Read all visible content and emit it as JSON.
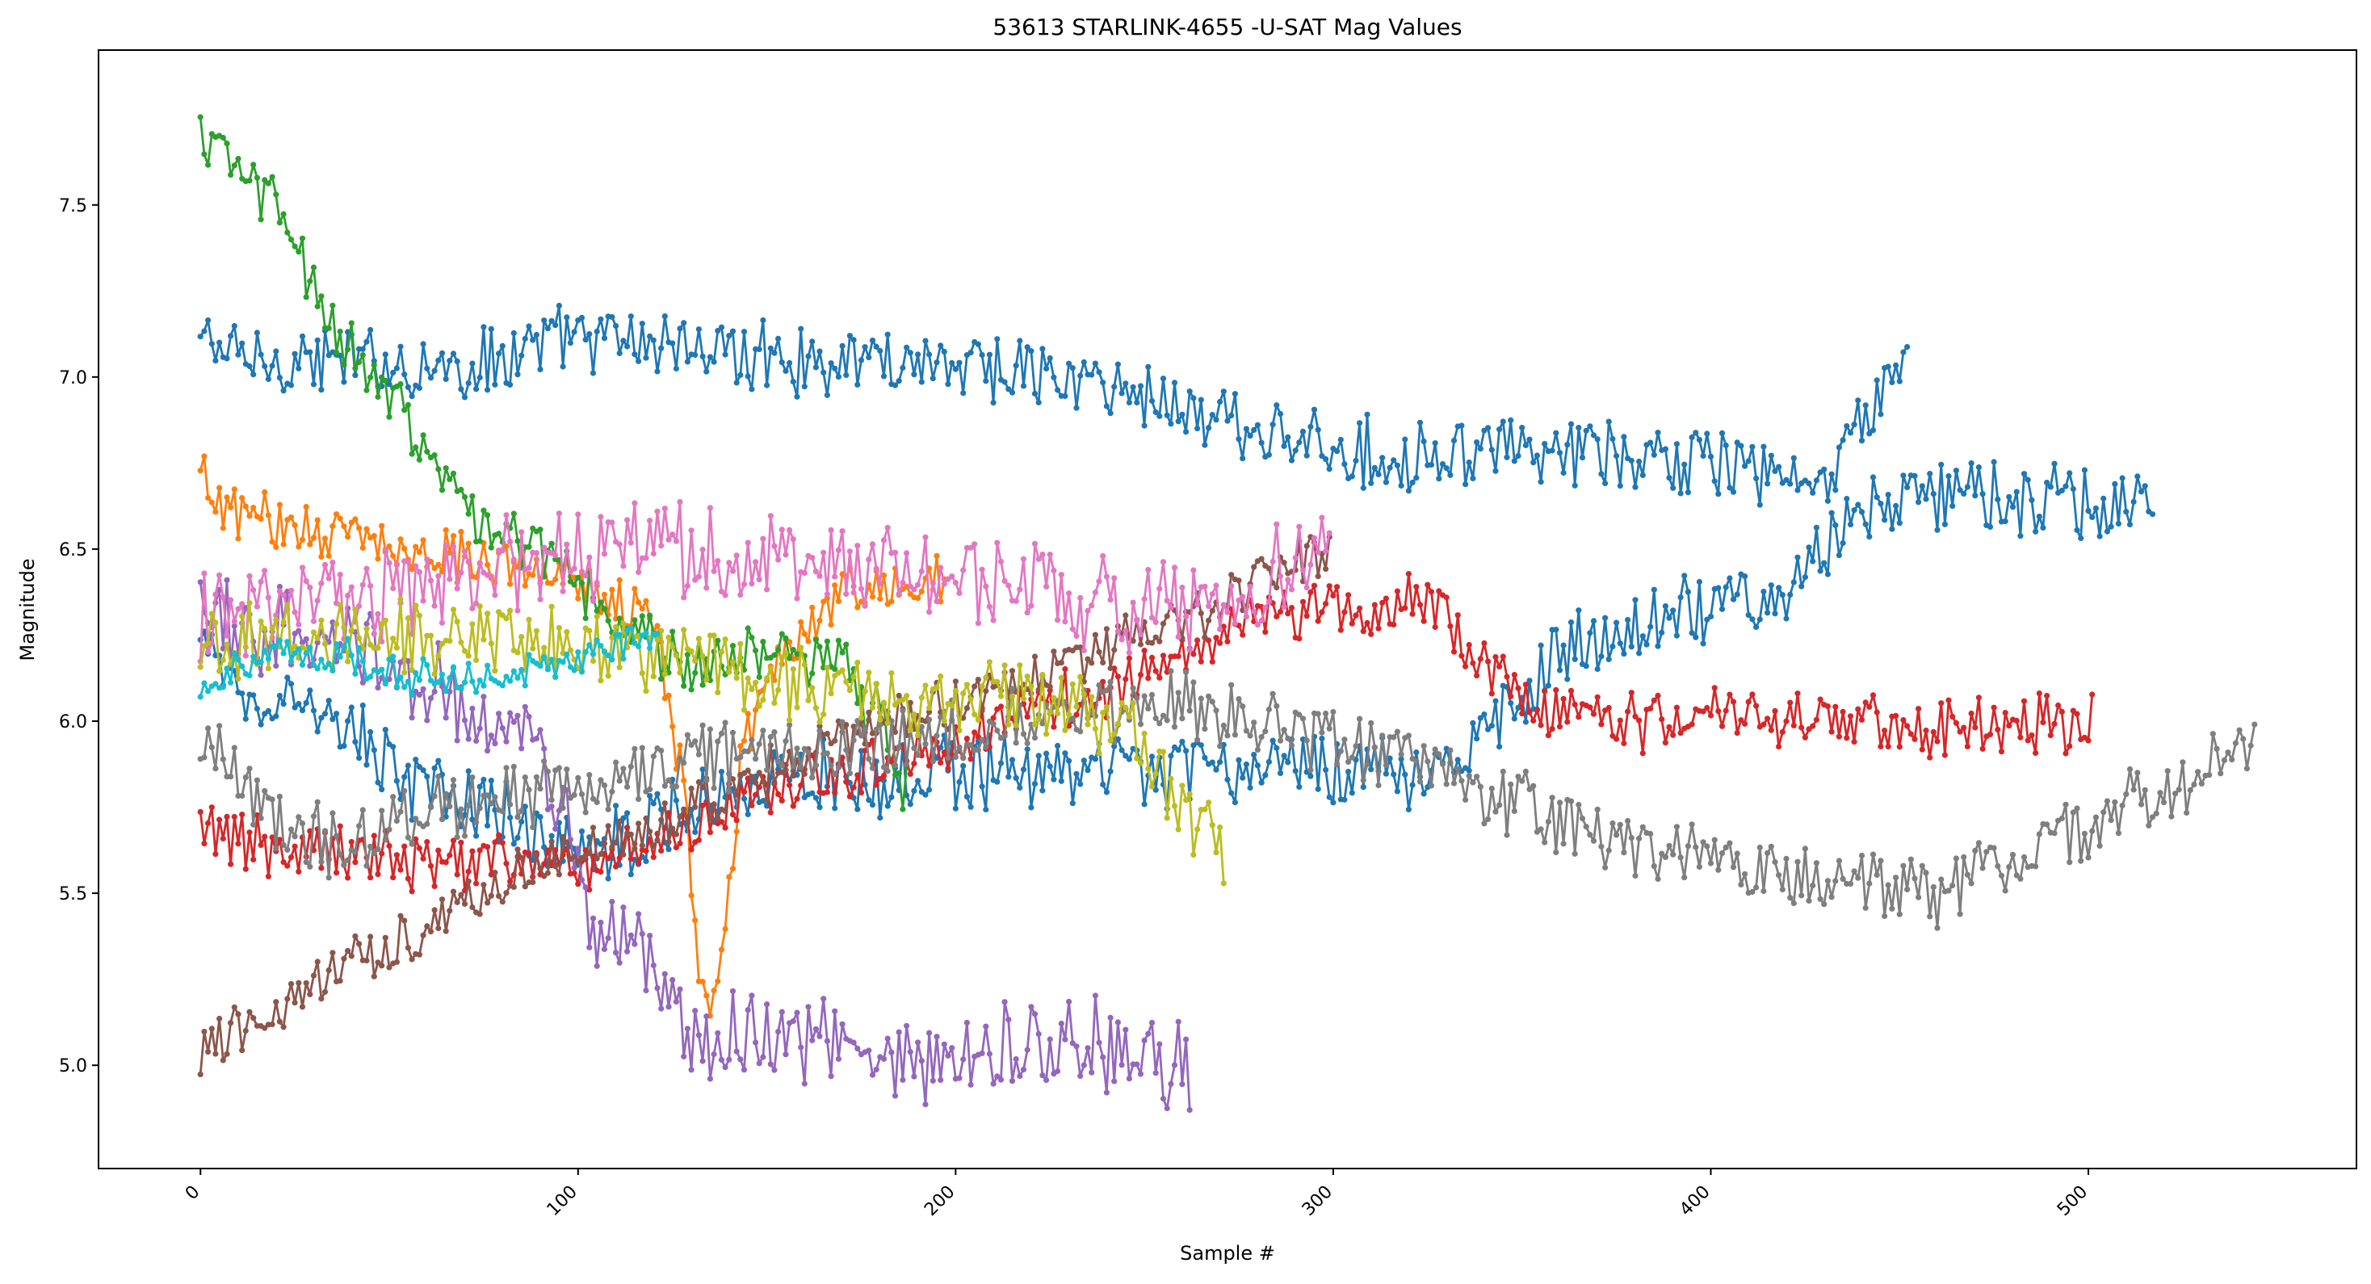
{
  "chart_data": {
    "type": "line",
    "title": "53613 STARLINK-4655 -U-SAT Mag Values",
    "xlabel": "Sample #",
    "ylabel": "Magnitude",
    "xlim": [
      -27,
      571
    ],
    "ylim": [
      4.7,
      7.95
    ],
    "xticks": [
      0,
      100,
      200,
      300,
      400,
      500
    ],
    "xtick_labels": [
      "0",
      "100",
      "200",
      "300",
      "400",
      "500"
    ],
    "yticks": [
      5.0,
      5.5,
      6.0,
      6.5,
      7.0,
      7.5
    ],
    "ytick_labels": [
      "5.0",
      "5.5",
      "6.0",
      "6.5",
      "7.0",
      "7.5"
    ],
    "xtick_rotation": 45,
    "grid": false,
    "legend": false,
    "marker": "circle",
    "series": [
      {
        "color": "#1f77b4",
        "n": 453,
        "noise": 0.09,
        "knots": [
          [
            0,
            7.12
          ],
          [
            10,
            7.05
          ],
          [
            40,
            7.05
          ],
          [
            70,
            7.03
          ],
          [
            100,
            7.12
          ],
          [
            120,
            7.1
          ],
          [
            160,
            7.05
          ],
          [
            200,
            7.05
          ],
          [
            250,
            6.95
          ],
          [
            300,
            6.78
          ],
          [
            350,
            6.78
          ],
          [
            400,
            6.75
          ],
          [
            430,
            6.68
          ],
          [
            445,
            6.95
          ],
          [
            453,
            7.1
          ]
        ]
      },
      {
        "color": "#1f77b4",
        "n": 518,
        "noise": 0.1,
        "knots": [
          [
            0,
            6.2
          ],
          [
            20,
            6.05
          ],
          [
            40,
            5.95
          ],
          [
            60,
            5.8
          ],
          [
            80,
            5.72
          ],
          [
            100,
            5.62
          ],
          [
            120,
            5.7
          ],
          [
            140,
            5.82
          ],
          [
            200,
            5.85
          ],
          [
            300,
            5.85
          ],
          [
            330,
            5.88
          ],
          [
            340,
            5.95
          ],
          [
            360,
            6.2
          ],
          [
            420,
            6.4
          ],
          [
            445,
            6.65
          ],
          [
            470,
            6.65
          ],
          [
            500,
            6.62
          ],
          [
            518,
            6.6
          ]
        ]
      },
      {
        "color": "#ff7f0e",
        "n": 198,
        "noise": 0.07,
        "knots": [
          [
            0,
            6.7
          ],
          [
            10,
            6.6
          ],
          [
            30,
            6.55
          ],
          [
            60,
            6.5
          ],
          [
            100,
            6.42
          ],
          [
            120,
            6.3
          ],
          [
            128,
            5.8
          ],
          [
            132,
            5.25
          ],
          [
            136,
            5.15
          ],
          [
            140,
            5.5
          ],
          [
            143,
            5.85
          ],
          [
            150,
            6.15
          ],
          [
            170,
            6.38
          ],
          [
            185,
            6.38
          ],
          [
            198,
            6.42
          ]
        ]
      },
      {
        "color": "#2ca02c",
        "n": 188,
        "noise": 0.08,
        "knots": [
          [
            0,
            7.72
          ],
          [
            10,
            7.6
          ],
          [
            20,
            7.5
          ],
          [
            30,
            7.25
          ],
          [
            40,
            7.1
          ],
          [
            50,
            6.95
          ],
          [
            60,
            6.8
          ],
          [
            70,
            6.6
          ],
          [
            90,
            6.5
          ],
          [
            110,
            6.3
          ],
          [
            130,
            6.15
          ],
          [
            150,
            6.2
          ],
          [
            170,
            6.15
          ],
          [
            180,
            6.0
          ],
          [
            188,
            5.75
          ]
        ]
      },
      {
        "color": "#d62728",
        "n": 502,
        "noise": 0.08,
        "knots": [
          [
            0,
            5.67
          ],
          [
            50,
            5.6
          ],
          [
            100,
            5.58
          ],
          [
            140,
            5.75
          ],
          [
            200,
            5.95
          ],
          [
            240,
            6.1
          ],
          [
            280,
            6.3
          ],
          [
            320,
            6.35
          ],
          [
            330,
            6.3
          ],
          [
            350,
            6.05
          ],
          [
            380,
            6.0
          ],
          [
            420,
            6.0
          ],
          [
            460,
            5.98
          ],
          [
            502,
            6.0
          ]
        ]
      },
      {
        "color": "#9467bd",
        "n": 263,
        "noise": 0.12,
        "knots": [
          [
            0,
            6.3
          ],
          [
            30,
            6.25
          ],
          [
            60,
            6.1
          ],
          [
            80,
            6.0
          ],
          [
            95,
            5.8
          ],
          [
            105,
            5.35
          ],
          [
            115,
            5.4
          ],
          [
            125,
            5.15
          ],
          [
            135,
            5.05
          ],
          [
            150,
            5.1
          ],
          [
            200,
            5.0
          ],
          [
            225,
            5.1
          ],
          [
            240,
            5.05
          ],
          [
            263,
            4.98
          ]
        ]
      },
      {
        "color": "#8c564b",
        "n": 300,
        "noise": 0.07,
        "knots": [
          [
            0,
            5.05
          ],
          [
            20,
            5.15
          ],
          [
            40,
            5.3
          ],
          [
            60,
            5.4
          ],
          [
            80,
            5.55
          ],
          [
            100,
            5.62
          ],
          [
            130,
            5.75
          ],
          [
            160,
            5.9
          ],
          [
            200,
            6.05
          ],
          [
            240,
            6.2
          ],
          [
            270,
            6.35
          ],
          [
            300,
            6.5
          ]
        ]
      },
      {
        "color": "#e377c2",
        "n": 300,
        "noise": 0.12,
        "knots": [
          [
            0,
            6.3
          ],
          [
            40,
            6.35
          ],
          [
            80,
            6.45
          ],
          [
            120,
            6.5
          ],
          [
            160,
            6.48
          ],
          [
            200,
            6.42
          ],
          [
            250,
            6.32
          ],
          [
            280,
            6.4
          ],
          [
            300,
            6.5
          ]
        ]
      },
      {
        "color": "#7f7f7f",
        "n": 545,
        "noise": 0.09,
        "knots": [
          [
            0,
            5.95
          ],
          [
            20,
            5.7
          ],
          [
            40,
            5.62
          ],
          [
            60,
            5.75
          ],
          [
            100,
            5.82
          ],
          [
            140,
            5.9
          ],
          [
            180,
            5.95
          ],
          [
            220,
            6.0
          ],
          [
            260,
            6.05
          ],
          [
            300,
            5.95
          ],
          [
            330,
            5.85
          ],
          [
            360,
            5.7
          ],
          [
            400,
            5.6
          ],
          [
            430,
            5.55
          ],
          [
            460,
            5.5
          ],
          [
            500,
            5.7
          ],
          [
            545,
            5.95
          ]
        ]
      },
      {
        "color": "#bcbd22",
        "n": 272,
        "noise": 0.1,
        "knots": [
          [
            0,
            6.22
          ],
          [
            40,
            6.25
          ],
          [
            80,
            6.25
          ],
          [
            120,
            6.2
          ],
          [
            160,
            6.1
          ],
          [
            200,
            6.05
          ],
          [
            230,
            6.05
          ],
          [
            250,
            5.95
          ],
          [
            262,
            5.7
          ],
          [
            272,
            5.6
          ]
        ]
      },
      {
        "color": "#17becf",
        "n": 122,
        "noise": 0.05,
        "knots": [
          [
            0,
            6.1
          ],
          [
            20,
            6.22
          ],
          [
            40,
            6.18
          ],
          [
            60,
            6.12
          ],
          [
            80,
            6.12
          ],
          [
            100,
            6.18
          ],
          [
            122,
            6.25
          ]
        ]
      }
    ]
  }
}
